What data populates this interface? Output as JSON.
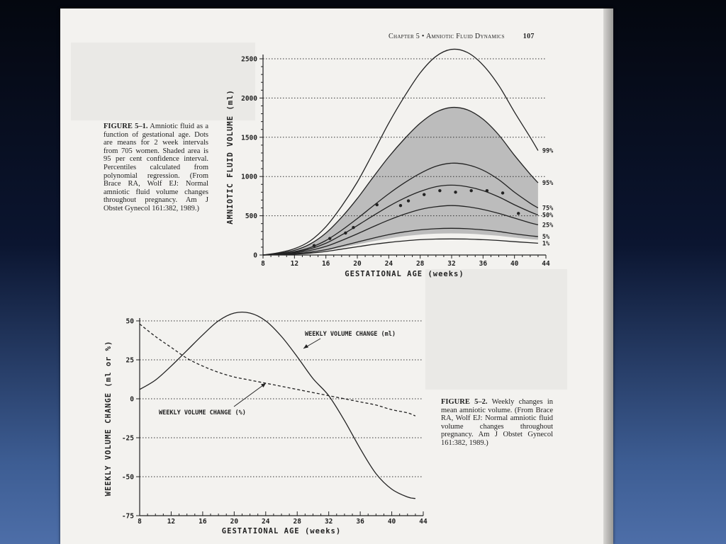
{
  "header": {
    "chapter": "Chapter 5 • Amniotic Fluid Dynamics",
    "page_number": "107"
  },
  "figures": [
    {
      "caption_label": "FIGURE 5–1.",
      "caption_text": "Amniotic fluid as a function of gestational age. Dots are means for 2 week intervals from 705 women. Shaded area is 95 per cent confidence interval. Percentiles calculated from polynomial regression. (From Brace RA, Wolf EJ: Normal amniotic fluid volume changes throughout pregnancy. Am J Obstet Gynecol 161:382, 1989.)"
    },
    {
      "caption_label": "FIGURE 5–2.",
      "caption_text": "Weekly changes in mean amniotic volume. (From Brace RA, Wolf EJ: Normal amniotic fluid volume changes throughout pregnancy. Am J Obstet Gynecol 161:382, 1989.)"
    }
  ],
  "chart_data": [
    {
      "type": "line",
      "title": "",
      "xlabel": "GESTATIONAL AGE (weeks)",
      "ylabel": "AMNIOTIC FLUID VOLUME (ml)",
      "xlim": [
        8,
        44
      ],
      "ylim": [
        0,
        2500
      ],
      "x_ticks": [
        8,
        12,
        16,
        20,
        24,
        28,
        32,
        36,
        40,
        44
      ],
      "y_ticks": [
        0,
        500,
        1000,
        1500,
        2000,
        2500
      ],
      "grid": "horizontal-dotted",
      "x": [
        8,
        10,
        12,
        14,
        16,
        18,
        20,
        22,
        24,
        26,
        28,
        30,
        32,
        34,
        36,
        38,
        40,
        42,
        43
      ],
      "series": [
        {
          "name": "99%",
          "values": [
            0,
            30,
            80,
            180,
            360,
            620,
            930,
            1300,
            1680,
            2020,
            2320,
            2530,
            2620,
            2580,
            2420,
            2160,
            1820,
            1500,
            1330
          ]
        },
        {
          "name": "95%",
          "values": [
            0,
            22,
            60,
            140,
            280,
            480,
            720,
            990,
            1250,
            1480,
            1680,
            1820,
            1880,
            1850,
            1730,
            1530,
            1270,
            1030,
            920
          ]
        },
        {
          "name": "75%",
          "values": [
            0,
            15,
            42,
            95,
            185,
            315,
            465,
            625,
            780,
            920,
            1040,
            1130,
            1170,
            1150,
            1080,
            960,
            800,
            660,
            600
          ]
        },
        {
          "name": "50%",
          "values": [
            0,
            12,
            35,
            78,
            150,
            255,
            375,
            500,
            620,
            725,
            810,
            870,
            890,
            870,
            820,
            740,
            640,
            550,
            510
          ]
        },
        {
          "name": "25%",
          "values": [
            0,
            9,
            26,
            58,
            110,
            185,
            270,
            360,
            445,
            520,
            580,
            615,
            630,
            615,
            580,
            530,
            470,
            410,
            385
          ]
        },
        {
          "name": "5%",
          "values": [
            0,
            6,
            16,
            36,
            68,
            115,
            165,
            215,
            260,
            295,
            320,
            335,
            340,
            335,
            320,
            300,
            270,
            245,
            235
          ]
        },
        {
          "name": "1%",
          "values": [
            0,
            4,
            11,
            24,
            45,
            75,
            105,
            135,
            160,
            180,
            195,
            203,
            205,
            203,
            195,
            185,
            170,
            157,
            150
          ]
        }
      ],
      "confidence_band": {
        "label": "95 per cent confidence interval",
        "lower": [
          0,
          5,
          13,
          30,
          56,
          95,
          135,
          175,
          210,
          240,
          260,
          272,
          275,
          272,
          260,
          245,
          222,
          202,
          195
        ],
        "upper": [
          0,
          22,
          60,
          140,
          280,
          480,
          720,
          990,
          1250,
          1480,
          1680,
          1820,
          1880,
          1850,
          1730,
          1530,
          1270,
          1030,
          920
        ]
      },
      "means": {
        "x": [
          14.5,
          16.5,
          18.5,
          19.5,
          22.5,
          25.5,
          26.5,
          28.5,
          30.5,
          32.5,
          34.5,
          36.5,
          38.5,
          40.5
        ],
        "y": [
          120,
          210,
          280,
          350,
          640,
          630,
          690,
          770,
          820,
          800,
          820,
          820,
          790,
          530
        ]
      },
      "band_color": "#bcbcbc",
      "line_color": "#222222"
    },
    {
      "type": "line",
      "title": "",
      "xlabel": "GESTATIONAL AGE (weeks)",
      "ylabel": "WEEKLY VOLUME CHANGE (ml or %)",
      "xlim": [
        8,
        44
      ],
      "ylim": [
        -75,
        50
      ],
      "x_ticks": [
        8,
        12,
        16,
        20,
        24,
        28,
        32,
        36,
        40,
        44
      ],
      "y_ticks": [
        50,
        25,
        0,
        -25,
        -50,
        -75
      ],
      "grid": "horizontal-dotted",
      "x": [
        8,
        10,
        12,
        14,
        16,
        18,
        20,
        22,
        24,
        26,
        28,
        30,
        32,
        34,
        36,
        38,
        40,
        42,
        43
      ],
      "series": [
        {
          "name": "WEEKLY VOLUME CHANGE (ml)",
          "style": "solid",
          "values": [
            6,
            12,
            21,
            31,
            41,
            50,
            55,
            55,
            50,
            40,
            27,
            13,
            2,
            -14,
            -32,
            -48,
            -58,
            -63,
            -64
          ]
        },
        {
          "name": "WEEKLY VOLUME CHANGE (%)",
          "style": "dashed",
          "values": [
            48,
            40,
            33,
            26,
            21,
            17,
            14,
            12,
            10,
            8,
            6,
            4,
            2,
            0,
            -2,
            -4,
            -7,
            -9,
            -11
          ]
        }
      ],
      "line_color": "#222222"
    }
  ]
}
